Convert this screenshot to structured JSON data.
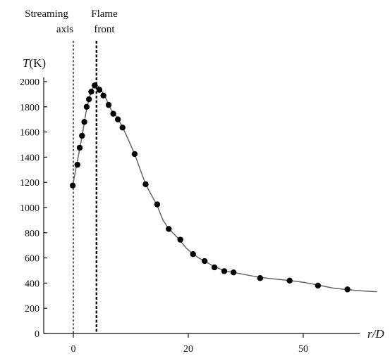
{
  "chart_data": {
    "type": "scatter",
    "title": "",
    "ylabel": {
      "symbol": "T",
      "unit": "(K)"
    },
    "xlabel": "r/D",
    "ylim": [
      0,
      2000
    ],
    "yticks": [
      0,
      200,
      400,
      600,
      800,
      1000,
      1200,
      1400,
      1600,
      1800,
      2000
    ],
    "xticks": [
      {
        "label": "0"
      },
      {
        "label": "20"
      },
      {
        "label": "50"
      }
    ],
    "annotations": [
      {
        "lines": [
          "Streaming",
          "axis"
        ],
        "x_value": 0
      },
      {
        "lines": [
          "Flame",
          "front"
        ],
        "x_value": 4
      }
    ],
    "series": [
      {
        "x": [
          -0.1,
          0.7,
          1.1,
          1.5,
          1.9,
          2.3,
          2.7,
          3.1,
          3.7,
          4.5,
          5.2,
          6.1,
          6.9,
          7.7,
          8.5,
          10.6,
          12.5,
          14.5,
          16.5,
          18.5,
          20.7,
          22.7,
          24.4,
          26.1,
          27.7,
          32.3,
          37.4,
          42.3,
          47.4
        ],
        "y": [
          1175,
          1340,
          1475,
          1570,
          1680,
          1800,
          1860,
          1920,
          1970,
          1935,
          1890,
          1815,
          1745,
          1700,
          1635,
          1425,
          1185,
          1025,
          830,
          745,
          630,
          575,
          525,
          495,
          485,
          440,
          420,
          380,
          350
        ]
      }
    ],
    "curve": {
      "x": [
        -0.1,
        0.4,
        1.0,
        1.6,
        2.2,
        2.8,
        3.4,
        3.8,
        4.3,
        4.9,
        5.6,
        6.5,
        7.5,
        8.5,
        9.5,
        10.6,
        11.5,
        12.5,
        13.5,
        14.5,
        15.5,
        16.5,
        17.5,
        18.5,
        19.5,
        20.7,
        21.7,
        22.7,
        24.4,
        26.1,
        27.7,
        30.0,
        32.3,
        35.0,
        37.4,
        40.0,
        42.3,
        45.0,
        47.4,
        50.0,
        52.5
      ],
      "y": [
        1175,
        1300,
        1440,
        1590,
        1760,
        1880,
        1950,
        1975,
        1965,
        1925,
        1870,
        1780,
        1720,
        1640,
        1540,
        1425,
        1310,
        1185,
        1100,
        1015,
        900,
        830,
        785,
        735,
        680,
        630,
        600,
        575,
        530,
        500,
        485,
        465,
        445,
        432,
        420,
        405,
        385,
        360,
        348,
        338,
        332
      ]
    }
  }
}
